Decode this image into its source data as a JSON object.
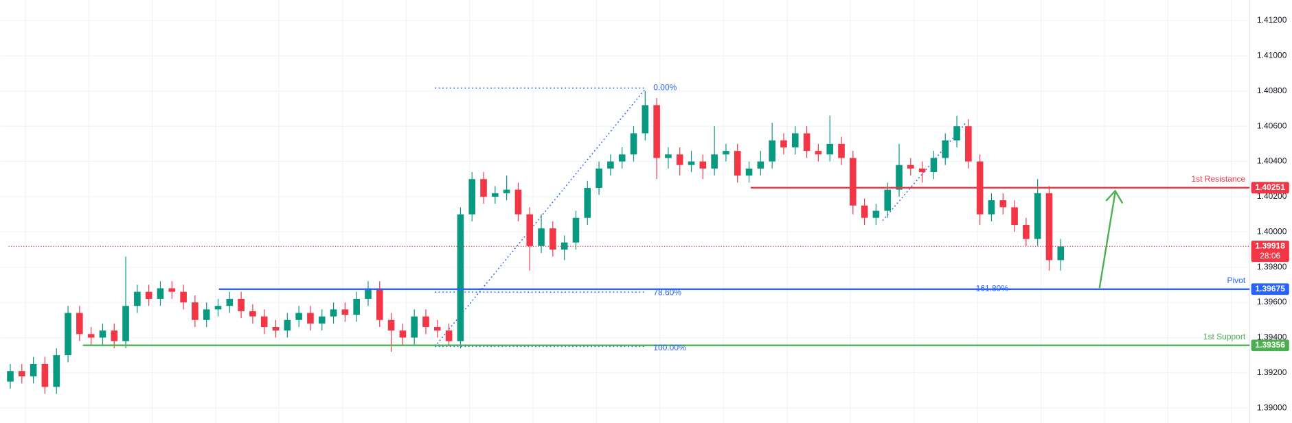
{
  "chart_data": {
    "type": "candlestick",
    "up_color": "#089981",
    "down_color": "#f23645",
    "open": [
      1.3915,
      1.3921,
      1.3918,
      1.3925,
      1.3912,
      1.393,
      1.3954,
      1.3942,
      1.394,
      1.3944,
      1.3938,
      1.3958,
      1.3966,
      1.3962,
      1.3968,
      1.3966,
      1.396,
      1.395,
      1.3956,
      1.3958,
      1.3962,
      1.3955,
      1.3952,
      1.3946,
      1.3944,
      1.395,
      1.3954,
      1.3948,
      1.3952,
      1.3956,
      1.3953,
      1.3962,
      1.3968,
      1.395,
      1.3944,
      1.394,
      1.3952,
      1.3946,
      1.3944,
      1.3938,
      1.401,
      1.403,
      1.402,
      1.4022,
      1.4024,
      1.401,
      1.3992,
      1.4002,
      1.399,
      1.3994,
      1.4008,
      1.4025,
      1.4036,
      1.404,
      1.4044,
      1.4056,
      1.4072,
      1.4042,
      1.4044,
      1.4038,
      1.404,
      1.4036,
      1.4044,
      1.4046,
      1.4032,
      1.4036,
      1.404,
      1.4052,
      1.4048,
      1.4056,
      1.4046,
      1.4044,
      1.405,
      1.4042,
      1.4015,
      1.4008,
      1.4012,
      1.4024,
      1.4038,
      1.4036,
      1.4034,
      1.4042,
      1.4052,
      1.406,
      1.404,
      1.401,
      1.4018,
      1.4014,
      1.4004,
      1.3996,
      1.4022,
      1.3984
    ],
    "high": [
      1.3925,
      1.3925,
      1.3929,
      1.3929,
      1.3934,
      1.3958,
      1.3958,
      1.3946,
      1.3948,
      1.3948,
      1.3986,
      1.397,
      1.397,
      1.3972,
      1.3972,
      1.397,
      1.3964,
      1.396,
      1.3962,
      1.3966,
      1.3966,
      1.3959,
      1.3956,
      1.395,
      1.3954,
      1.3958,
      1.3958,
      1.3956,
      1.396,
      1.396,
      1.3966,
      1.3972,
      1.3972,
      1.3954,
      1.3948,
      1.3956,
      1.3956,
      1.395,
      1.3948,
      1.4014,
      1.4034,
      1.4034,
      1.4026,
      1.4032,
      1.4028,
      1.4014,
      1.401,
      1.4006,
      1.3998,
      1.4012,
      1.4029,
      1.404,
      1.4044,
      1.4048,
      1.406,
      1.408,
      1.4076,
      1.4048,
      1.4048,
      1.4046,
      1.4044,
      1.406,
      1.405,
      1.405,
      1.404,
      1.4046,
      1.4062,
      1.4056,
      1.406,
      1.406,
      1.405,
      1.4066,
      1.4054,
      1.4046,
      1.4019,
      1.4016,
      1.4028,
      1.405,
      1.4042,
      1.404,
      1.4046,
      1.4056,
      1.4066,
      1.4064,
      1.4044,
      1.4022,
      1.4022,
      1.4018,
      1.4008,
      1.403,
      1.4026,
      1.3996
    ],
    "low": [
      1.3911,
      1.3914,
      1.3914,
      1.3908,
      1.3908,
      1.3926,
      1.3938,
      1.3936,
      1.3936,
      1.3934,
      1.3934,
      1.3954,
      1.3958,
      1.3958,
      1.3962,
      1.3956,
      1.3946,
      1.3946,
      1.3952,
      1.3954,
      1.3951,
      1.3948,
      1.3942,
      1.394,
      1.394,
      1.3946,
      1.3944,
      1.3944,
      1.3948,
      1.3949,
      1.3949,
      1.3958,
      1.3946,
      1.3932,
      1.3936,
      1.3936,
      1.3942,
      1.394,
      1.3935,
      1.3934,
      1.4006,
      1.4016,
      1.4016,
      1.4018,
      1.4006,
      1.3978,
      1.3988,
      1.3986,
      1.3984,
      1.399,
      1.4004,
      1.4021,
      1.4032,
      1.4036,
      1.404,
      1.4052,
      1.403,
      1.4036,
      1.4032,
      1.4034,
      1.403,
      1.4032,
      1.404,
      1.4028,
      1.4028,
      1.4032,
      1.4036,
      1.4044,
      1.4044,
      1.4042,
      1.404,
      1.404,
      1.4038,
      1.401,
      1.4004,
      1.4004,
      1.4008,
      1.402,
      1.4032,
      1.4028,
      1.403,
      1.4038,
      1.4048,
      1.4036,
      1.4004,
      1.4006,
      1.401,
      1.4,
      1.3992,
      1.3992,
      1.3978,
      1.3978
    ],
    "close": [
      1.3921,
      1.3918,
      1.3925,
      1.3912,
      1.393,
      1.3954,
      1.3942,
      1.394,
      1.3944,
      1.3938,
      1.3958,
      1.3966,
      1.3962,
      1.3968,
      1.3966,
      1.396,
      1.395,
      1.3956,
      1.3958,
      1.3962,
      1.3955,
      1.3952,
      1.3946,
      1.3944,
      1.395,
      1.3954,
      1.3948,
      1.3952,
      1.3956,
      1.3953,
      1.3962,
      1.3968,
      1.395,
      1.3944,
      1.394,
      1.3952,
      1.3946,
      1.3944,
      1.3938,
      1.401,
      1.403,
      1.402,
      1.4022,
      1.4024,
      1.401,
      1.3992,
      1.4002,
      1.399,
      1.3994,
      1.4008,
      1.4025,
      1.4036,
      1.404,
      1.4044,
      1.4056,
      1.4072,
      1.4042,
      1.4044,
      1.4038,
      1.404,
      1.4036,
      1.4044,
      1.4046,
      1.4032,
      1.4036,
      1.404,
      1.4052,
      1.4048,
      1.4056,
      1.4046,
      1.4044,
      1.405,
      1.4042,
      1.4015,
      1.4008,
      1.4012,
      1.4024,
      1.4038,
      1.4036,
      1.4034,
      1.4042,
      1.4052,
      1.406,
      1.404,
      1.401,
      1.4018,
      1.4014,
      1.4004,
      1.3996,
      1.4022,
      1.3984,
      1.39918
    ],
    "ylim": [
      1.38915,
      1.41317
    ],
    "yticks": [
      {
        "value": 1.412,
        "label": "1.41200"
      },
      {
        "value": 1.41,
        "label": "1.41000"
      },
      {
        "value": 1.408,
        "label": "1.40800"
      },
      {
        "value": 1.406,
        "label": "1.40600"
      },
      {
        "value": 1.404,
        "label": "1.40400"
      },
      {
        "value": 1.402,
        "label": "1.40200"
      },
      {
        "value": 1.4,
        "label": "1.40000"
      },
      {
        "value": 1.398,
        "label": "1.39800"
      },
      {
        "value": 1.396,
        "label": "1.39600"
      },
      {
        "value": 1.394,
        "label": "1.39400"
      },
      {
        "value": 1.392,
        "label": "1.39200"
      },
      {
        "value": 1.39,
        "label": "1.39000"
      }
    ],
    "grid": true,
    "levels": [
      {
        "name": "1st Resistance",
        "value": 1.40251,
        "color": "#f23645"
      },
      {
        "name": "Pivot",
        "value": 1.39675,
        "color": "#2962ff"
      },
      {
        "name": "1st Support",
        "value": 1.39356,
        "color": "#4caf50"
      }
    ],
    "current_price": {
      "value": 1.39918,
      "countdown": "28:06",
      "color": "#f23645"
    },
    "annotations": [
      "0.00%",
      "78.60%",
      "100.00%",
      "161.80%"
    ]
  }
}
